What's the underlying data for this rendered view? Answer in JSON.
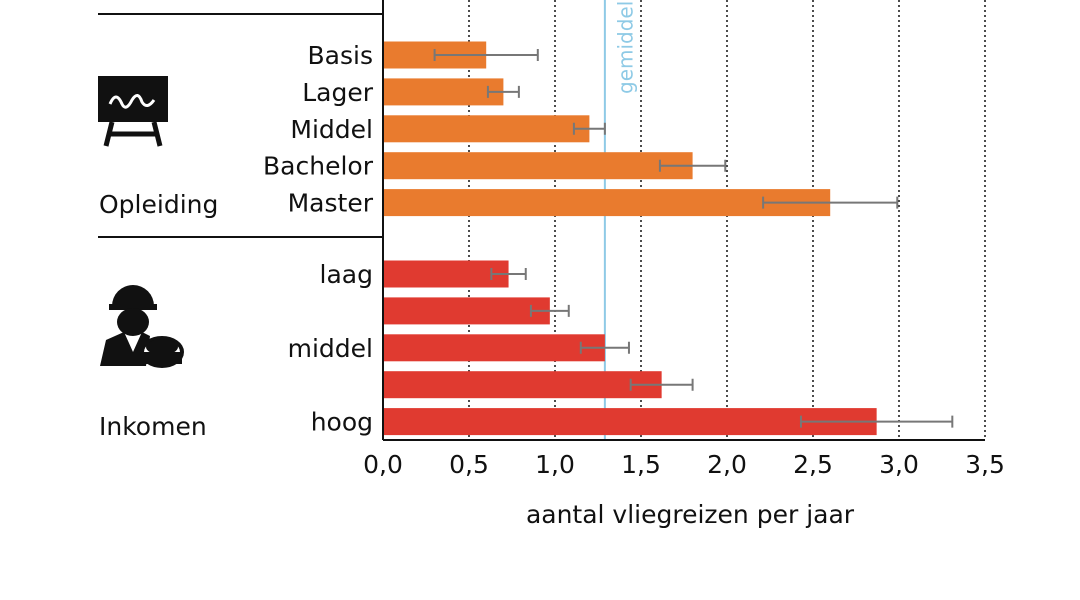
{
  "chart_data": {
    "type": "bar",
    "orientation": "horizontal",
    "x_label": "aantal vliegreizen per jaar",
    "xlim": [
      0,
      3.5
    ],
    "xticks": [
      {
        "value": 0,
        "label": "0,0"
      },
      {
        "value": 0.5,
        "label": "0,5"
      },
      {
        "value": 1,
        "label": "1,0"
      },
      {
        "value": 1.5,
        "label": "1,5"
      },
      {
        "value": 2,
        "label": "2,0"
      },
      {
        "value": 2.5,
        "label": "2,5"
      },
      {
        "value": 3,
        "label": "3,0"
      },
      {
        "value": 3.5,
        "label": "3,5"
      }
    ],
    "grid": true,
    "average": {
      "value": 1.29,
      "label": "gemiddeld",
      "color": "#8ecae6"
    },
    "groups": [
      {
        "name": "Opleiding",
        "color": "#e97b2e",
        "categories": [
          "Basis",
          "Lager",
          "Middel",
          "Bachelor",
          "Master"
        ],
        "values": [
          0.6,
          0.7,
          1.2,
          1.8,
          2.6
        ],
        "errors": [
          0.3,
          0.09,
          0.09,
          0.19,
          0.39
        ]
      },
      {
        "name": "Inkomen",
        "color": "#e03a30",
        "categories": [
          "laag",
          null,
          "middel",
          null,
          "hoog"
        ],
        "values": [
          0.73,
          0.97,
          1.29,
          1.62,
          2.87
        ],
        "errors": [
          0.1,
          0.11,
          0.14,
          0.18,
          0.44
        ]
      }
    ]
  }
}
